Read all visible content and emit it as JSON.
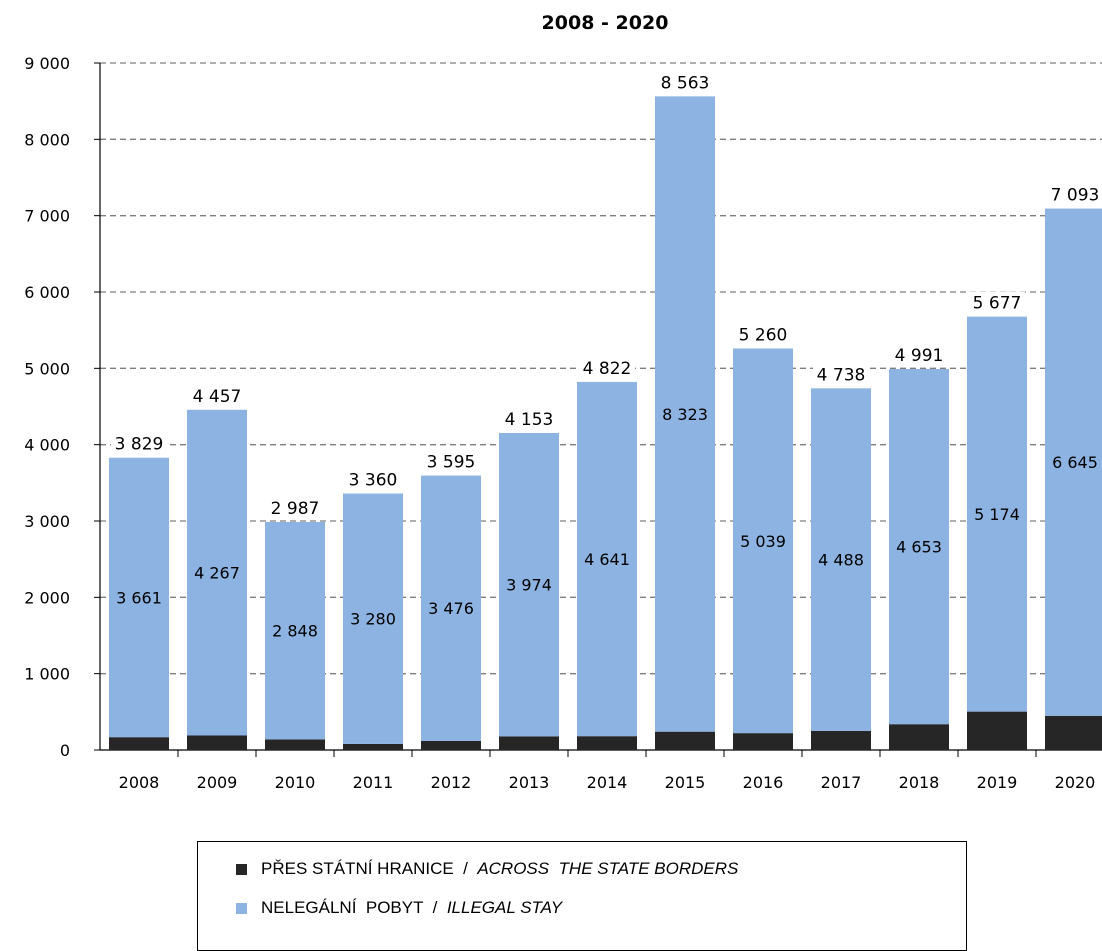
{
  "chart_data": {
    "type": "bar",
    "stacked": true,
    "title": "2008 - 2020",
    "categories": [
      "2008",
      "2009",
      "2010",
      "2011",
      "2012",
      "2013",
      "2014",
      "2015",
      "2016",
      "2017",
      "2018",
      "2019",
      "2020"
    ],
    "series": [
      {
        "name": "PŘES STÁTNÍ HRANICE / ACROSS THE STATE BORDERS",
        "color": "#262626",
        "values": [
          168,
          190,
          139,
          80,
          119,
          179,
          181,
          240,
          221,
          250,
          338,
          503,
          448
        ]
      },
      {
        "name": "NELEGÁLNÍ POBYT / ILLEGAL STAY",
        "color": "#8db3e2",
        "values": [
          3661,
          4267,
          2848,
          3280,
          3476,
          3974,
          4641,
          8323,
          5039,
          4488,
          4653,
          5174,
          6645
        ]
      }
    ],
    "totals": [
      3829,
      4457,
      2987,
      3360,
      3595,
      4153,
      4822,
      8563,
      5260,
      4738,
      4991,
      5677,
      7093
    ],
    "total_labels": [
      "3 829",
      "4 457",
      "2 987",
      "3 360",
      "3 595",
      "4 153",
      "4 822",
      "8 563",
      "5 260",
      "4 738",
      "4 991",
      "5 677",
      "7 093"
    ],
    "inner_labels": [
      "3 661",
      "4 267",
      "2 848",
      "3 280",
      "3 476",
      "3 974",
      "4 641",
      "8 323",
      "5 039",
      "4 488",
      "4 653",
      "5 174",
      "6 645"
    ],
    "ylim": [
      0,
      9000
    ],
    "yticks": [
      0,
      1000,
      2000,
      3000,
      4000,
      5000,
      6000,
      7000,
      8000,
      9000
    ],
    "ytick_labels": [
      "0",
      "1 000",
      "2 000",
      "3 000",
      "4 000",
      "5 000",
      "6 000",
      "7 000",
      "8 000",
      "9 000"
    ],
    "grid": true,
    "legend_position": "bottom"
  },
  "legend": {
    "item1_main": "PŘES STÁTNÍ HRANICE  /  ",
    "item1_en": "ACROSS  THE STATE BORDERS",
    "item2_main": "NELEGÁLNÍ  POBYT  /  ",
    "item2_en": "ILLEGAL STAY",
    "color1": "#262626",
    "color2": "#8db3e2"
  }
}
